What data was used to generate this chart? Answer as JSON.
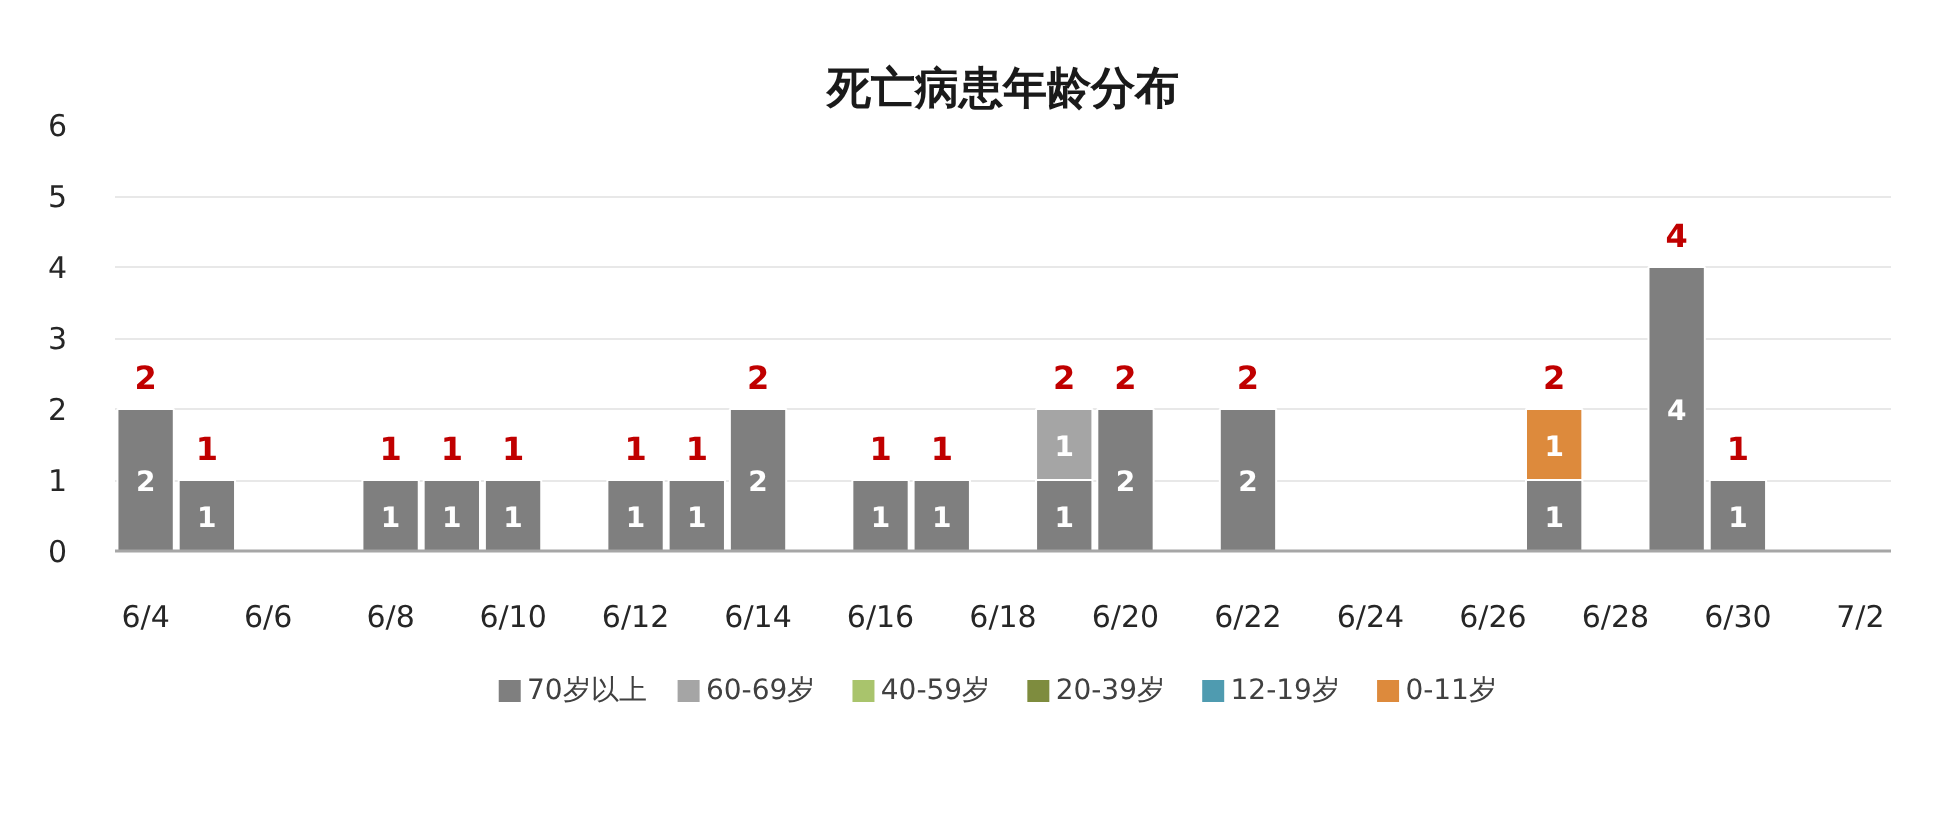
{
  "chart_data": {
    "type": "bar",
    "stacked": true,
    "title": "死亡病患年龄分布",
    "categories": [
      "6/4",
      null,
      "6/6",
      null,
      "6/8",
      null,
      "6/10",
      null,
      "6/12",
      null,
      "6/14",
      null,
      "6/16",
      null,
      "6/18",
      null,
      "6/20",
      null,
      "6/22",
      null,
      "6/24",
      null,
      "6/26",
      null,
      "6/28",
      null,
      "6/30",
      null,
      "7/2"
    ],
    "series": [
      {
        "name": "70岁以上",
        "color": "#7f7f7f",
        "values": [
          2,
          1,
          null,
          null,
          1,
          1,
          1,
          null,
          1,
          1,
          2,
          null,
          1,
          1,
          null,
          1,
          2,
          null,
          2,
          null,
          null,
          null,
          null,
          1,
          null,
          4,
          1,
          null,
          null
        ]
      },
      {
        "name": "60-69岁",
        "color": "#a5a5a5",
        "values": [
          null,
          null,
          null,
          null,
          null,
          null,
          null,
          null,
          null,
          null,
          null,
          null,
          null,
          null,
          null,
          1,
          null,
          null,
          null,
          null,
          null,
          null,
          null,
          null,
          null,
          null,
          null,
          null,
          null
        ]
      },
      {
        "name": "40-59岁",
        "color": "#a9c46c",
        "values": [
          null,
          null,
          null,
          null,
          null,
          null,
          null,
          null,
          null,
          null,
          null,
          null,
          null,
          null,
          null,
          null,
          null,
          null,
          null,
          null,
          null,
          null,
          null,
          null,
          null,
          null,
          null,
          null,
          null
        ]
      },
      {
        "name": "20-39岁",
        "color": "#7e8c3e",
        "values": [
          null,
          null,
          null,
          null,
          null,
          null,
          null,
          null,
          null,
          null,
          null,
          null,
          null,
          null,
          null,
          null,
          null,
          null,
          null,
          null,
          null,
          null,
          null,
          null,
          null,
          null,
          null,
          null,
          null
        ]
      },
      {
        "name": "12-19岁",
        "color": "#4f9bb0",
        "values": [
          null,
          null,
          null,
          null,
          null,
          null,
          null,
          null,
          null,
          null,
          null,
          null,
          null,
          null,
          null,
          null,
          null,
          null,
          null,
          null,
          null,
          null,
          null,
          null,
          null,
          null,
          null,
          null,
          null
        ]
      },
      {
        "name": "0-11岁",
        "color": "#dd8a3c",
        "values": [
          null,
          null,
          null,
          null,
          null,
          null,
          null,
          null,
          null,
          null,
          null,
          null,
          null,
          null,
          null,
          null,
          null,
          null,
          null,
          null,
          null,
          null,
          null,
          1,
          null,
          null,
          null,
          null,
          null
        ]
      }
    ],
    "totals": [
      "2",
      "1",
      null,
      null,
      "1",
      "1",
      "1",
      null,
      "1",
      "1",
      "2",
      null,
      "1",
      "1",
      null,
      "2",
      "2",
      null,
      "2",
      null,
      null,
      null,
      null,
      "2",
      null,
      "4",
      "1",
      null,
      null
    ],
    "ylim": [
      0,
      6
    ],
    "yticks": [
      0,
      1,
      2,
      3,
      4,
      5,
      6
    ],
    "grid": "y",
    "legend": "bottom",
    "data_labels": true
  }
}
